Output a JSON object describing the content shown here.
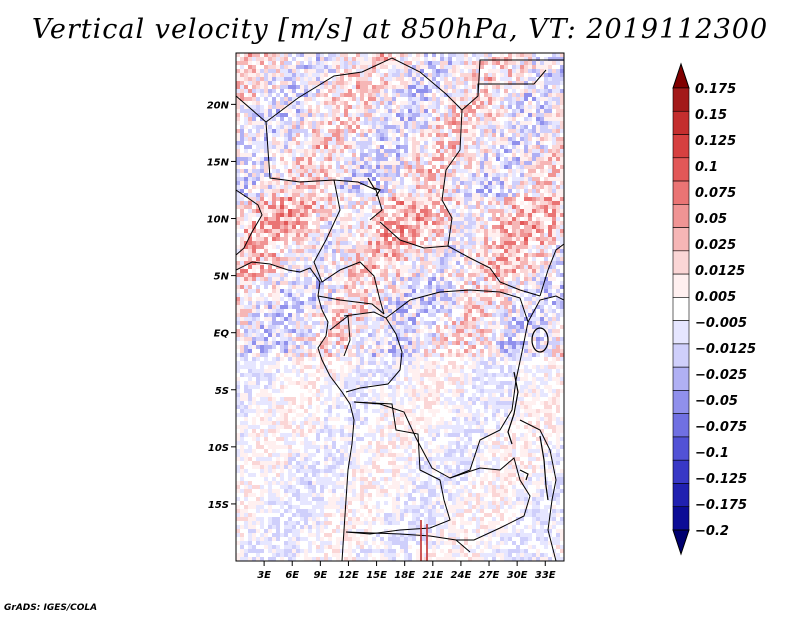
{
  "title": "Vertical velocity [m/s] at 850hPa, VT: 2019112300",
  "credit": "GrADS: IGES/COLA",
  "map": {
    "variable": "Vertical velocity",
    "units": "m/s",
    "level": "850hPa",
    "valid_time": "2019112300",
    "lon_range": [
      0,
      35
    ],
    "lat_range": [
      -20,
      24.5
    ],
    "lat_ticks": [
      {
        "value": 20,
        "label": "20N"
      },
      {
        "value": 15,
        "label": "15N"
      },
      {
        "value": 10,
        "label": "10N"
      },
      {
        "value": 5,
        "label": "5N"
      },
      {
        "value": 0,
        "label": "EQ"
      },
      {
        "value": -5,
        "label": "5S"
      },
      {
        "value": -10,
        "label": "10S"
      },
      {
        "value": -15,
        "label": "15S"
      }
    ],
    "lon_ticks": [
      {
        "value": 3,
        "label": "3E"
      },
      {
        "value": 6,
        "label": "6E"
      },
      {
        "value": 9,
        "label": "9E"
      },
      {
        "value": 12,
        "label": "12E"
      },
      {
        "value": 15,
        "label": "15E"
      },
      {
        "value": 18,
        "label": "18E"
      },
      {
        "value": 21,
        "label": "21E"
      },
      {
        "value": 24,
        "label": "24E"
      },
      {
        "value": 27,
        "label": "27E"
      },
      {
        "value": 30,
        "label": "30E"
      },
      {
        "value": 33,
        "label": "33E"
      }
    ]
  },
  "colorbar": {
    "colors": [
      "#800000",
      "#a31a1a",
      "#c42e2e",
      "#d64040",
      "#e25858",
      "#ea7474",
      "#f09494",
      "#f6b6b6",
      "#fbd6d6",
      "#fff0f0",
      "#ffffff",
      "#e6e6ff",
      "#cfcffb",
      "#b0b0f4",
      "#9090ec",
      "#7070e2",
      "#5252d6",
      "#3838c6",
      "#2020b0",
      "#0c0c96",
      "#000070"
    ],
    "labels": [
      "0.175",
      "0.15",
      "0.125",
      "0.1",
      "0.075",
      "0.05",
      "0.025",
      "0.0125",
      "0.005",
      "−0.005",
      "−0.0125",
      "−0.025",
      "−0.05",
      "−0.075",
      "−0.1",
      "−0.125",
      "−0.175",
      "−0.2"
    ]
  }
}
